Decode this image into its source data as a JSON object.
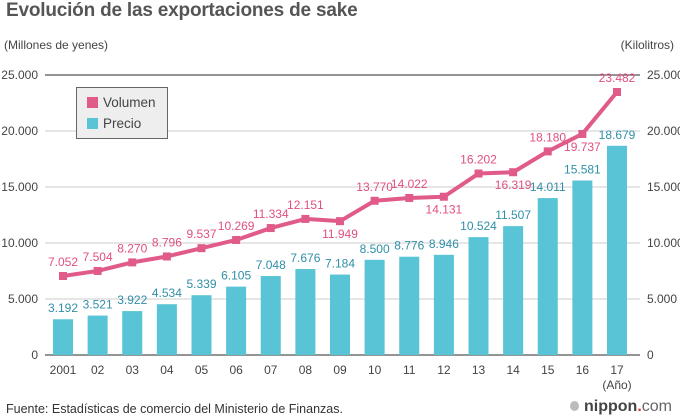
{
  "colors": {
    "volume": "#e05a8a",
    "volume_label": "#e0507f",
    "price": "#58c4d6",
    "price_label": "#2f8fa8",
    "grid": "#cccccc",
    "axis": "#555555"
  },
  "footer": {
    "source": "Fuente: Estadísticas de comercio del Ministerio de Finanzas.",
    "brand_name": "nippon",
    "brand_dot": ".",
    "brand_tld": "com"
  },
  "chart_data": {
    "type": "bar",
    "title": "Evolución de las exportaciones de sake",
    "xlabel": "(Año)",
    "ylabel_left": "(Millones de yenes)",
    "ylabel_right": "(Kilolitros)",
    "categories": [
      "2001",
      "02",
      "03",
      "04",
      "05",
      "06",
      "07",
      "08",
      "09",
      "10",
      "11",
      "12",
      "13",
      "14",
      "15",
      "16",
      "17"
    ],
    "ylim": [
      0,
      25000
    ],
    "yticks": [
      0,
      5000,
      10000,
      15000,
      20000,
      25000
    ],
    "ytick_labels": [
      "0",
      "5.000",
      "10.000",
      "15.000",
      "20.000",
      "25.000"
    ],
    "grid": true,
    "legend_position": "top-left",
    "series": [
      {
        "name": "Volumen",
        "type": "line",
        "axis": "right",
        "values": [
          7052,
          7504,
          8270,
          8796,
          9537,
          10269,
          11334,
          12151,
          11949,
          13770,
          14022,
          14131,
          16202,
          16319,
          18180,
          19737,
          23482
        ],
        "labels": [
          "7.052",
          "7.504",
          "8.270",
          "8.796",
          "9.537",
          "10.269",
          "11.334",
          "12.151",
          "11.949",
          "13.770",
          "14.022",
          "14.131",
          "16.202",
          "16.319",
          "18.180",
          "19.737",
          "23.482"
        ],
        "label_below": [
          false,
          false,
          false,
          false,
          false,
          false,
          false,
          false,
          true,
          false,
          false,
          true,
          false,
          true,
          false,
          true,
          false
        ]
      },
      {
        "name": "Precio",
        "type": "bar",
        "axis": "left",
        "values": [
          3192,
          3521,
          3922,
          4534,
          5339,
          6105,
          7048,
          7676,
          7184,
          8500,
          8776,
          8946,
          10524,
          11507,
          14011,
          15581,
          18679
        ],
        "labels": [
          "3.192",
          "3.521",
          "3.922",
          "4.534",
          "5.339",
          "6.105",
          "7.048",
          "7.676",
          "7.184",
          "8.500",
          "8.776",
          "8.946",
          "10.524",
          "11.507",
          "14.011",
          "15.581",
          "18.679"
        ]
      }
    ]
  }
}
